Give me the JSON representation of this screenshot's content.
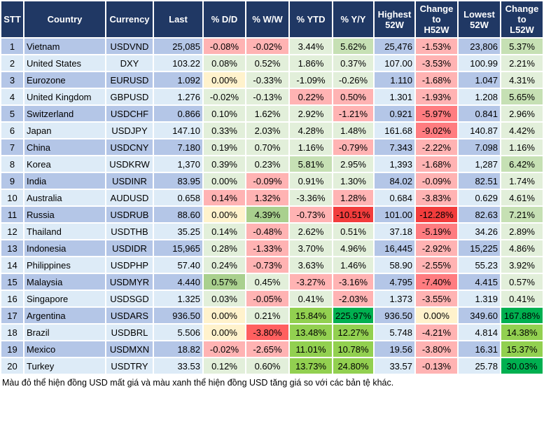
{
  "headers": [
    "STT",
    "Country",
    "Currency",
    "Last",
    "% D/D",
    "% W/W",
    "% YTD",
    "% Y/Y",
    "Highest\n52W",
    "Change\nto\nH52W",
    "Lowest\n52W",
    "Change\nto\nL52W"
  ],
  "row_colors": {
    "odd": "#b4c6e7",
    "even": "#ddebf7"
  },
  "header_color": "#203864",
  "palette": {
    "p": "#ffb3b3",
    "g1": "#e2efda",
    "y": "#fff2cc",
    "g2": "#c6e0b4",
    "g3": "#a9d08e",
    "g4": "#92d050",
    "g5": "#00b050",
    "r1": "#ff7c80",
    "r2": "#ff5f5f",
    "r3": "#f23c3c"
  },
  "rows": [
    {
      "cells": [
        "1",
        "Vietnam",
        "USDVND",
        "25,085",
        "-0.08%",
        "-0.02%",
        "3.44%",
        "5.62%",
        "25,476",
        "-1.53%",
        "23,806",
        "5.37%"
      ],
      "colors": [
        "p",
        "p",
        "g1",
        "g2",
        "p",
        "g2"
      ]
    },
    {
      "cells": [
        "2",
        "United States",
        "DXY",
        "103.22",
        "0.08%",
        "0.52%",
        "1.86%",
        "0.37%",
        "107.00",
        "-3.53%",
        "100.99",
        "2.21%"
      ],
      "colors": [
        "g1",
        "g1",
        "g1",
        "g1",
        "p",
        "g1"
      ]
    },
    {
      "cells": [
        "3",
        "Eurozone",
        "EURUSD",
        "1.092",
        "0.00%",
        "-0.33%",
        "-1.09%",
        "-0.26%",
        "1.110",
        "-1.68%",
        "1.047",
        "4.31%"
      ],
      "colors": [
        "y",
        "g1",
        "g1",
        "g1",
        "p",
        "g1"
      ]
    },
    {
      "cells": [
        "4",
        "United Kingdom",
        "GBPUSD",
        "1.276",
        "-0.02%",
        "-0.13%",
        "0.22%",
        "0.50%",
        "1.301",
        "-1.93%",
        "1.208",
        "5.65%"
      ],
      "colors": [
        "g1",
        "g1",
        "p",
        "p",
        "p",
        "g2"
      ]
    },
    {
      "cells": [
        "5",
        "Switzerland",
        "USDCHF",
        "0.866",
        "0.10%",
        "1.62%",
        "2.92%",
        "-1.21%",
        "0.921",
        "-5.97%",
        "0.841",
        "2.96%"
      ],
      "colors": [
        "g1",
        "g1",
        "g1",
        "p",
        "r1",
        "g1"
      ]
    },
    {
      "cells": [
        "6",
        "Japan",
        "USDJPY",
        "147.10",
        "0.33%",
        "2.03%",
        "4.28%",
        "1.48%",
        "161.68",
        "-9.02%",
        "140.87",
        "4.42%"
      ],
      "colors": [
        "g1",
        "g1",
        "g1",
        "g1",
        "r1",
        "g1"
      ]
    },
    {
      "cells": [
        "7",
        "China",
        "USDCNY",
        "7.180",
        "0.19%",
        "0.70%",
        "1.16%",
        "-0.79%",
        "7.343",
        "-2.22%",
        "7.098",
        "1.16%"
      ],
      "colors": [
        "g1",
        "g1",
        "g1",
        "p",
        "p",
        "g1"
      ]
    },
    {
      "cells": [
        "8",
        "Korea",
        "USDKRW",
        "1,370",
        "0.39%",
        "0.23%",
        "5.81%",
        "2.95%",
        "1,393",
        "-1.68%",
        "1,287",
        "6.42%"
      ],
      "colors": [
        "g1",
        "g1",
        "g2",
        "g1",
        "p",
        "g2"
      ]
    },
    {
      "cells": [
        "9",
        "India",
        "USDINR",
        "83.95",
        "0.00%",
        "-0.09%",
        "0.91%",
        "1.30%",
        "84.02",
        "-0.09%",
        "82.51",
        "1.74%"
      ],
      "colors": [
        "g1",
        "p",
        "g1",
        "g1",
        "p",
        "g1"
      ]
    },
    {
      "cells": [
        "10",
        "Australia",
        "AUDUSD",
        "0.658",
        "0.14%",
        "1.32%",
        "-3.36%",
        "1.28%",
        "0.684",
        "-3.83%",
        "0.629",
        "4.61%"
      ],
      "colors": [
        "p",
        "p",
        "g1",
        "p",
        "p",
        "g1"
      ]
    },
    {
      "cells": [
        "11",
        "Russia",
        "USDRUB",
        "88.60",
        "0.00%",
        "4.39%",
        "-0.73%",
        "-10.51%",
        "101.00",
        "-12.28%",
        "82.63",
        "7.21%"
      ],
      "colors": [
        "y",
        "g3",
        "p",
        "r3",
        "r3",
        "g2"
      ]
    },
    {
      "cells": [
        "12",
        "Thailand",
        "USDTHB",
        "35.25",
        "0.14%",
        "-0.48%",
        "2.62%",
        "0.51%",
        "37.18",
        "-5.19%",
        "34.26",
        "2.89%"
      ],
      "colors": [
        "g1",
        "p",
        "g1",
        "g1",
        "r1",
        "g1"
      ]
    },
    {
      "cells": [
        "13",
        "Indonesia",
        "USDIDR",
        "15,965",
        "0.28%",
        "-1.33%",
        "3.70%",
        "4.96%",
        "16,445",
        "-2.92%",
        "15,225",
        "4.86%"
      ],
      "colors": [
        "g1",
        "p",
        "g1",
        "g1",
        "p",
        "g1"
      ]
    },
    {
      "cells": [
        "14",
        "Philippines",
        "USDPHP",
        "57.40",
        "0.24%",
        "-0.73%",
        "3.63%",
        "1.46%",
        "58.90",
        "-2.55%",
        "55.23",
        "3.92%"
      ],
      "colors": [
        "g1",
        "p",
        "g1",
        "g1",
        "p",
        "g1"
      ]
    },
    {
      "cells": [
        "15",
        "Malaysia",
        "USDMYR",
        "4.440",
        "0.57%",
        "0.45%",
        "-3.27%",
        "-3.16%",
        "4.795",
        "-7.40%",
        "4.415",
        "0.57%"
      ],
      "colors": [
        "g3",
        "g1",
        "p",
        "p",
        "r1",
        "g1"
      ]
    },
    {
      "cells": [
        "16",
        "Singapore",
        "USDSGD",
        "1.325",
        "0.03%",
        "-0.05%",
        "0.41%",
        "-2.03%",
        "1.373",
        "-3.55%",
        "1.319",
        "0.41%"
      ],
      "colors": [
        "g1",
        "p",
        "g1",
        "p",
        "p",
        "g1"
      ]
    },
    {
      "cells": [
        "17",
        "Argentina",
        "USDARS",
        "936.50",
        "0.00%",
        "0.21%",
        "15.84%",
        "225.97%",
        "936.50",
        "0.00%",
        "349.60",
        "167.88%"
      ],
      "colors": [
        "y",
        "g1",
        "g4",
        "g5",
        "y",
        "g5"
      ]
    },
    {
      "cells": [
        "18",
        "Brazil",
        "USDBRL",
        "5.506",
        "0.00%",
        "-3.80%",
        "13.48%",
        "12.27%",
        "5.748",
        "-4.21%",
        "4.814",
        "14.38%"
      ],
      "colors": [
        "y",
        "r2",
        "g4",
        "g4",
        "p",
        "g4"
      ]
    },
    {
      "cells": [
        "19",
        "Mexico",
        "USDMXN",
        "18.82",
        "-0.02%",
        "-2.65%",
        "11.01%",
        "10.78%",
        "19.56",
        "-3.80%",
        "16.31",
        "15.37%"
      ],
      "colors": [
        "p",
        "p",
        "g4",
        "g4",
        "p",
        "g4"
      ]
    },
    {
      "cells": [
        "20",
        "Turkey",
        "USDTRY",
        "33.53",
        "0.12%",
        "0.60%",
        "13.73%",
        "24.80%",
        "33.57",
        "-0.13%",
        "25.78",
        "30.03%"
      ],
      "colors": [
        "g1",
        "g1",
        "g4",
        "g4",
        "p",
        "g5"
      ]
    }
  ],
  "footer": "Màu đỏ thể hiện đồng USD mất giá và màu xanh thể hiện đồng USD tăng giá so với các bản tệ khác."
}
